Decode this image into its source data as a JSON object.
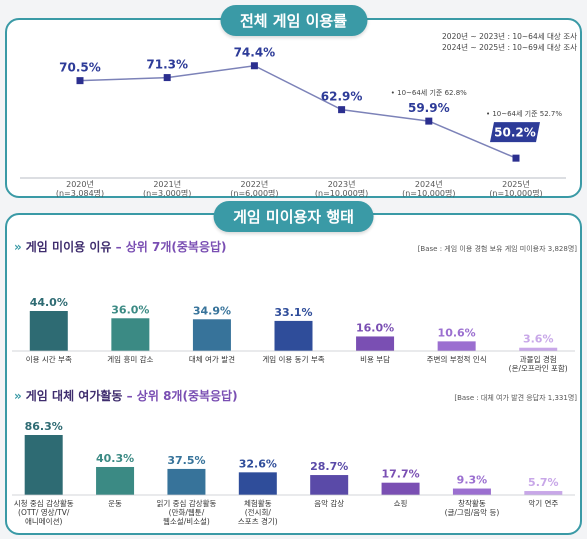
{
  "top_section": {
    "title": "전체 게임 이용률",
    "notes": [
      "2020년 ~ 2023년 : 10~64세 대상 조사",
      "2024년 ~ 2025년 : 10~69세 대상 조사"
    ]
  },
  "bottom_section": {
    "title": "게임 미이용자 행태",
    "reasons": {
      "title_main": "게임 미이용 이유",
      "title_sub": " – 상위 7개(중복응답)",
      "base": "[Base : 게임 이용 경험 보유 게임 미이용자 3,828명]"
    },
    "alternatives": {
      "title_main": "게임 대체 여가활동",
      "title_sub": " – 상위 8개(중복응답)",
      "base": "[Base : 대체 여가 발견 응답자 1,331명]"
    }
  },
  "chart_data": [
    {
      "type": "line",
      "title": "전체 게임 이용률",
      "x": [
        "2020년",
        "2021년",
        "2022년",
        "2023년",
        "2024년",
        "2025년"
      ],
      "x_sub": [
        "(n=3,084명)",
        "(n=3,000명)",
        "(n=6,000명)",
        "(n=10,000명)",
        "(n=10,000명)",
        "(n=10,000명)"
      ],
      "series": [
        {
          "values": [
            70.5,
            71.3,
            74.4,
            62.9,
            59.9,
            50.2
          ]
        }
      ],
      "value_labels": [
        "70.5%",
        "71.3%",
        "74.4%",
        "62.9%",
        "59.9%",
        "50.2%"
      ],
      "annotations": [
        {
          "at": "2024년",
          "text": "• 10~64세 기준 62.8%"
        },
        {
          "at": "2025년",
          "text": "• 10~64세 기준 52.7%"
        }
      ],
      "highlight_last": true,
      "colors": {
        "line": "#2b2f8f",
        "highlight": "#2d3b98"
      }
    },
    {
      "type": "bar",
      "title": "게임 미이용 이유",
      "categories": [
        "이용 시간 부족",
        "게임 흥미 감소",
        "대체 여가 발견",
        "게임 이용 동기 부족",
        "비용 부담",
        "주변의 부정적 인식",
        "과몰입 경험\n(온/오프라인 포함)"
      ],
      "values": [
        44.0,
        36.0,
        34.9,
        33.1,
        16.0,
        10.6,
        3.6
      ],
      "value_labels": [
        "44.0%",
        "36.0%",
        "34.9%",
        "33.1%",
        "16.0%",
        "10.6%",
        "3.6%"
      ],
      "colors": [
        "#2e6b73",
        "#3b8a84",
        "#37739a",
        "#2f4d9a",
        "#7a4fb3",
        "#9b6fd0",
        "#c8a7e8"
      ]
    },
    {
      "type": "bar",
      "title": "게임 대체 여가활동",
      "categories": [
        "시청 중심 감상활동\n(OTT/ 영상/TV/\n애니메이션)",
        "운동",
        "읽기 중심 감상활동\n(만화/웹툰/\n웹소설/비소설)",
        "체험활동\n(전시회/\n스포츠 경기)",
        "음악 감상",
        "쇼핑",
        "창작활동\n(글/그림/음악 등)",
        "악기 연주"
      ],
      "values": [
        86.3,
        40.3,
        37.5,
        32.6,
        28.7,
        17.7,
        9.3,
        5.7
      ],
      "value_labels": [
        "86.3%",
        "40.3%",
        "37.5%",
        "32.6%",
        "28.7%",
        "17.7%",
        "9.3%",
        "5.7%"
      ],
      "colors": [
        "#2e6b73",
        "#3b8a84",
        "#37739a",
        "#2f4d9a",
        "#5a4aa8",
        "#7a4fb3",
        "#9b6fd0",
        "#c8a7e8"
      ]
    }
  ]
}
